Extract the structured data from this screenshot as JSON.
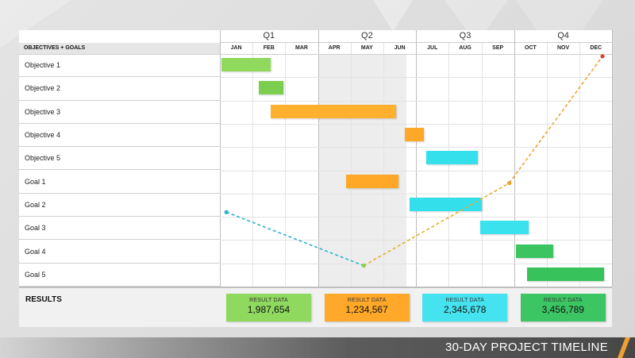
{
  "header": {
    "quarters": [
      "Q1",
      "Q2",
      "Q3",
      "Q4"
    ],
    "months": [
      "JAN",
      "FEB",
      "MAR",
      "APR",
      "MAY",
      "JUN",
      "JUL",
      "AUG",
      "SEP",
      "OCT",
      "NOV",
      "DEC"
    ],
    "objectives_header": "OBJECTIVES + GOALS"
  },
  "rows": [
    "Objective 1",
    "Objective 2",
    "Objective 3",
    "Objective 4",
    "Objective 5",
    "Goal 1",
    "Goal 2",
    "Goal 3",
    "Goal 4",
    "Goal 5"
  ],
  "tasks": [
    {
      "row": 0,
      "start": 0.05,
      "end": 1.55,
      "color": "#8fd95c"
    },
    {
      "row": 1,
      "start": 1.2,
      "end": 1.95,
      "color": "#7ccf4e"
    },
    {
      "row": 2,
      "start": 1.55,
      "end": 5.4,
      "color": "#ffb02e"
    },
    {
      "row": 3,
      "start": 5.65,
      "end": 6.25,
      "color": "#ffa726"
    },
    {
      "row": 4,
      "start": 6.3,
      "end": 7.9,
      "color": "#33e0ec"
    },
    {
      "row": 5,
      "start": 3.85,
      "end": 5.45,
      "color": "#ffa726"
    },
    {
      "row": 6,
      "start": 5.8,
      "end": 8.0,
      "color": "#33dfea"
    },
    {
      "row": 7,
      "start": 7.95,
      "end": 9.45,
      "color": "#3ae2ee"
    },
    {
      "row": 8,
      "start": 9.05,
      "end": 10.2,
      "color": "#3cc461"
    },
    {
      "row": 9,
      "start": 9.4,
      "end": 11.75,
      "color": "#37c25c"
    }
  ],
  "trend": {
    "points": [
      {
        "month": 0.2,
        "row": 6.8
      },
      {
        "month": 4.4,
        "row": 9.1
      },
      {
        "month": 8.85,
        "row": 5.55
      },
      {
        "month": 11.7,
        "row": 0.1
      }
    ],
    "colors": [
      "#2bb3c9",
      "#e0b030",
      "#f0a030",
      "#e03a2a"
    ]
  },
  "results": {
    "label": "RESULTS",
    "cards": [
      {
        "title": "RESULT DATA",
        "value": "1,987,654",
        "color": "#8ed95e"
      },
      {
        "title": "RESULT DATA",
        "value": "1,234,567",
        "color": "#ffa829"
      },
      {
        "title": "RESULT DATA",
        "value": "2,345,678",
        "color": "#45e3ef"
      },
      {
        "title": "RESULT DATA",
        "value": "3,456,789",
        "color": "#3cc563"
      }
    ]
  },
  "footer": {
    "title": "30-DAY PROJECT TIMELINE",
    "stripe_color": "#f0a030"
  }
}
